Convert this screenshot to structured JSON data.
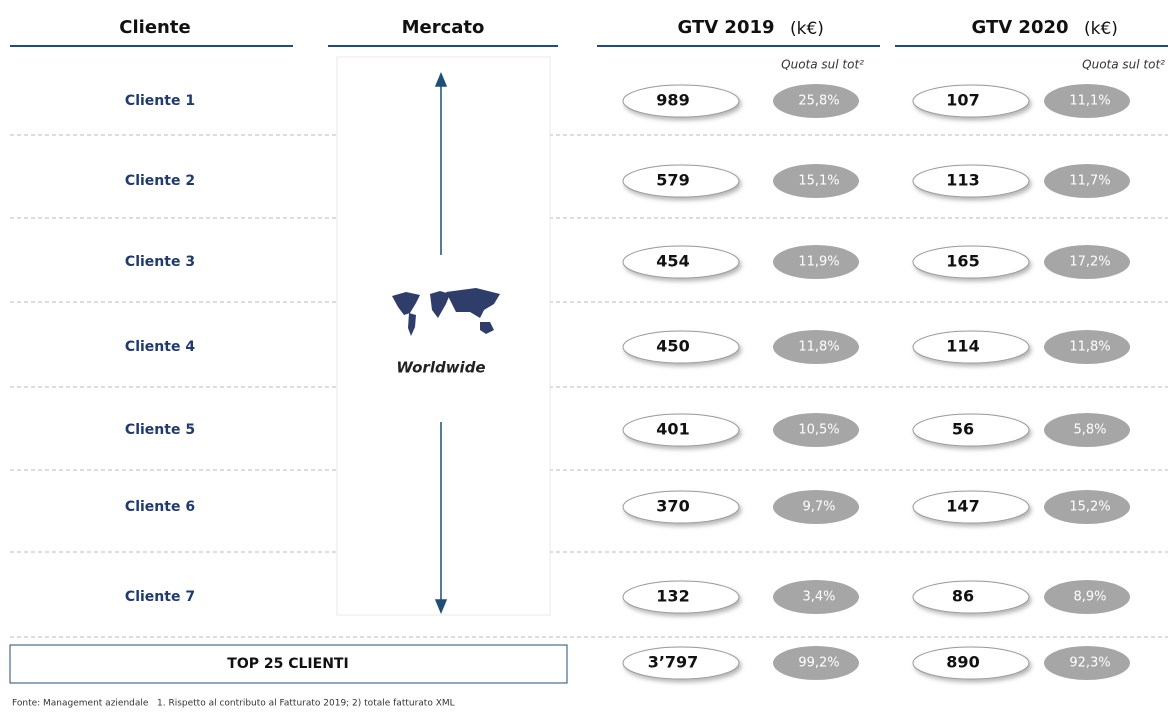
{
  "headers": {
    "client": "Cliente",
    "market": "Mercato",
    "gtv2019": "GTV 2019",
    "gtv2020": "GTV 2020",
    "unit": "(k€)",
    "share_label": "Quota sul tot²"
  },
  "market": "Worldwide",
  "rows": [
    [
      "Cliente 1",
      "989",
      "25,8%",
      "107",
      "11,1%"
    ],
    [
      "Cliente 2",
      "579",
      "15,1%",
      "113",
      "11,7%"
    ],
    [
      "Cliente 3",
      "454",
      "11,9%",
      "165",
      "17,2%"
    ],
    [
      "Cliente 4",
      "450",
      "11,8%",
      "114",
      "11,8%"
    ],
    [
      "Cliente 5",
      "401",
      "10,5%",
      "56",
      "5,8%"
    ],
    [
      "Cliente 6",
      "370",
      "9,7%",
      "147",
      "15,2%"
    ],
    [
      "Cliente 7",
      "132",
      "3,4%",
      "86",
      "8,9%"
    ]
  ],
  "total": [
    "TOP 25 CLIENTI",
    "3’797",
    "99,2%",
    "890",
    "92,3%"
  ],
  "footer": "Fonte: Management aziendale   1. Rispetto al contributo al Fatturato 2019; 2) totale fatturato XML"
}
